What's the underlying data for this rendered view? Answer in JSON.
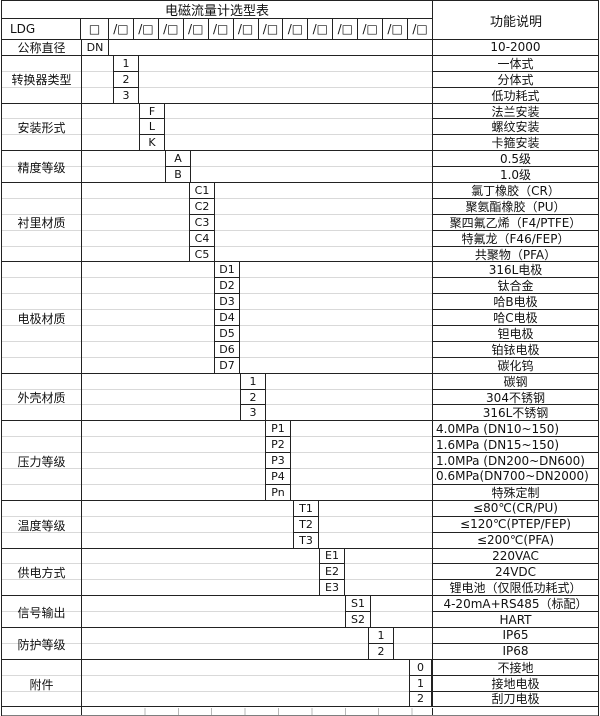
{
  "table": {
    "title": "电磁流量计选型表",
    "function_header": "功能说明",
    "model_prefix": "LDG",
    "box_glyph": "□",
    "slot_glyph": "/□"
  },
  "groups": [
    {
      "label": "公称直径",
      "rows": [
        {
          "code": "DN",
          "desc": "10-2000"
        }
      ]
    },
    {
      "label": "转换器类型",
      "rows": [
        {
          "code": "1",
          "desc": "一体式"
        },
        {
          "code": "2",
          "desc": "分体式"
        },
        {
          "code": "3",
          "desc": "低功耗式"
        }
      ]
    },
    {
      "label": "安装形式",
      "rows": [
        {
          "code": "F",
          "desc": "法兰安装"
        },
        {
          "code": "L",
          "desc": "螺纹安装"
        },
        {
          "code": "K",
          "desc": "卡箍安装"
        }
      ]
    },
    {
      "label": "精度等级",
      "rows": [
        {
          "code": "A",
          "desc": "0.5级"
        },
        {
          "code": "B",
          "desc": "1.0级"
        }
      ]
    },
    {
      "label": "衬里材质",
      "rows": [
        {
          "code": "C1",
          "desc": "氯丁橡胶（CR）"
        },
        {
          "code": "C2",
          "desc": "聚氨酯橡胶（PU）"
        },
        {
          "code": "C3",
          "desc": "聚四氟乙烯（F4/PTFE）"
        },
        {
          "code": "C4",
          "desc": "特氟龙（F46/FEP）"
        },
        {
          "code": "C5",
          "desc": "共聚物（PFA）"
        }
      ]
    },
    {
      "label": "电极材质",
      "rows": [
        {
          "code": "D1",
          "desc": "316L电极"
        },
        {
          "code": "D2",
          "desc": "钛合金"
        },
        {
          "code": "D3",
          "desc": "哈B电极"
        },
        {
          "code": "D4",
          "desc": "哈C电极"
        },
        {
          "code": "D5",
          "desc": "钽电极"
        },
        {
          "code": "D6",
          "desc": "铂铱电极"
        },
        {
          "code": "D7",
          "desc": "碳化钨"
        }
      ]
    },
    {
      "label": "外壳材质",
      "rows": [
        {
          "code": "1",
          "desc": "碳钢"
        },
        {
          "code": "2",
          "desc": "304不锈钢"
        },
        {
          "code": "3",
          "desc": "316L不锈钢"
        }
      ]
    },
    {
      "label": "压力等级",
      "rows": [
        {
          "code": "P1",
          "desc": "4.0MPa (DN10~150)"
        },
        {
          "code": "P2",
          "desc": "1.6MPa (DN15~150)"
        },
        {
          "code": "P3",
          "desc": "1.0MPa (DN200~DN600)"
        },
        {
          "code": "P4",
          "desc": "0.6MPa(DN700~DN2000)"
        },
        {
          "code": "Pn",
          "desc": "特殊定制"
        }
      ]
    },
    {
      "label": "温度等级",
      "rows": [
        {
          "code": "T1",
          "desc": "≤80℃(CR/PU)"
        },
        {
          "code": "T2",
          "desc": "≤120℃(PTEP/FEP)"
        },
        {
          "code": "T3",
          "desc": "≤200℃(PFA)"
        }
      ]
    },
    {
      "label": "供电方式",
      "rows": [
        {
          "code": "E1",
          "desc": "220VAC"
        },
        {
          "code": "E2",
          "desc": "24VDC"
        },
        {
          "code": "E3",
          "desc": "锂电池（仅限低功耗式）"
        }
      ]
    },
    {
      "label": "信号输出",
      "rows": [
        {
          "code": "S1",
          "desc": "4-20mA+RS485（标配）"
        },
        {
          "code": "S2",
          "desc": "HART"
        }
      ]
    },
    {
      "label": "防护等级",
      "rows": [
        {
          "code": "1",
          "desc": "IP65"
        },
        {
          "code": "2",
          "desc": "IP68"
        }
      ]
    },
    {
      "label": "附件",
      "rows": [
        {
          "code": "0",
          "desc": "不接地"
        },
        {
          "code": "1",
          "desc": "接地电极"
        },
        {
          "code": "2",
          "desc": "刮刀电极"
        }
      ]
    }
  ]
}
